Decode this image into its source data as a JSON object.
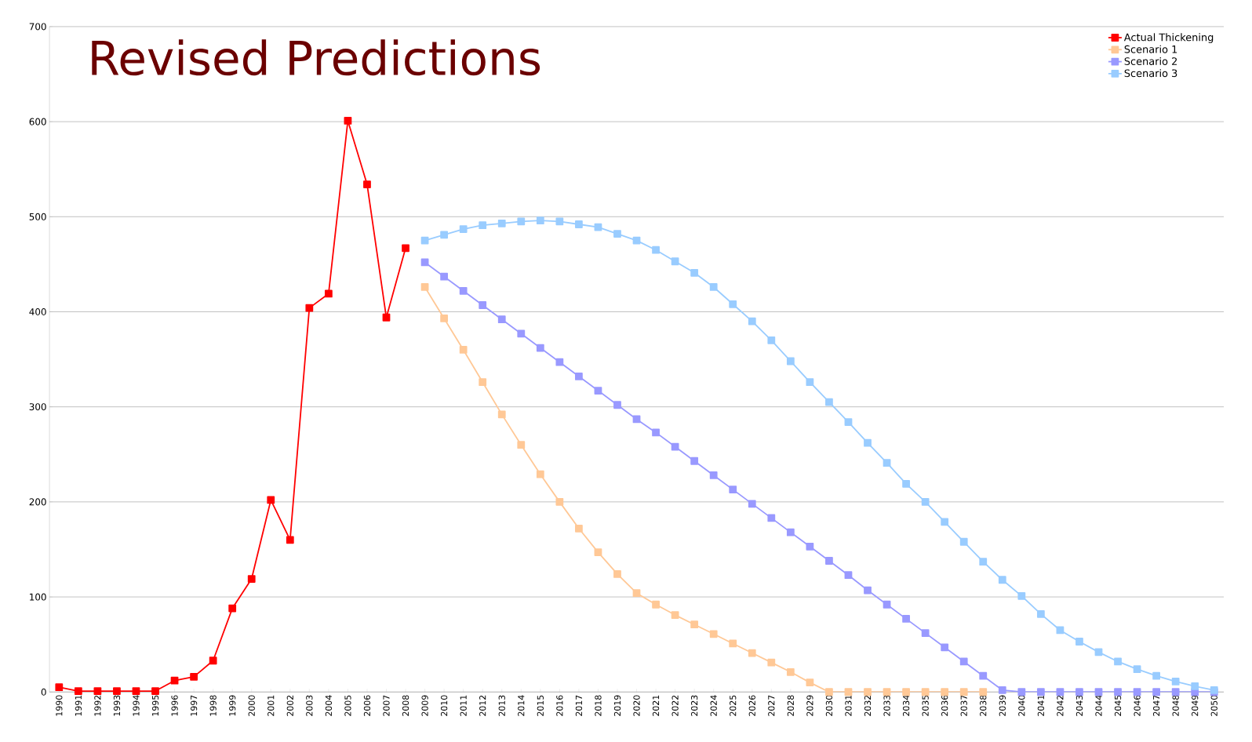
{
  "chart_data": {
    "type": "line",
    "title": "Revised Predictions",
    "categories": [
      "1990",
      "1991",
      "1992",
      "1993",
      "1994",
      "1995",
      "1996",
      "1997",
      "1998",
      "1999",
      "2000",
      "2001",
      "2002",
      "2003",
      "2004",
      "2005",
      "2006",
      "2007",
      "2008",
      "2009",
      "2010",
      "2011",
      "2012",
      "2013",
      "2014",
      "2015",
      "2016",
      "2017",
      "2018",
      "2019",
      "2020",
      "2021",
      "2022",
      "2023",
      "2024",
      "2025",
      "2026",
      "2027",
      "2028",
      "2029",
      "2030",
      "2031",
      "2032",
      "2033",
      "2034",
      "2035",
      "2036",
      "2037",
      "2038",
      "2039",
      "2040",
      "2041",
      "2042",
      "2043",
      "2044",
      "2045",
      "2046",
      "2047",
      "2048",
      "2049",
      "2050"
    ],
    "series": [
      {
        "name": "Actual Thickening",
        "color": "#ff0000",
        "values": [
          5,
          1,
          1,
          1,
          1,
          1,
          12,
          16,
          33,
          88,
          119,
          202,
          160,
          404,
          419,
          601,
          534,
          394,
          467,
          null,
          null,
          null,
          null,
          null,
          null,
          null,
          null,
          null,
          null,
          null,
          null,
          null,
          null,
          null,
          null,
          null,
          null,
          null,
          null,
          null,
          null,
          null,
          null,
          null,
          null,
          null,
          null,
          null,
          null,
          null,
          null,
          null,
          null,
          null,
          null,
          null,
          null,
          null,
          null,
          null,
          null
        ]
      },
      {
        "name": "Scenario 1",
        "color": "#ffc896",
        "values": [
          null,
          null,
          null,
          null,
          null,
          null,
          null,
          null,
          null,
          null,
          null,
          null,
          null,
          null,
          null,
          null,
          null,
          null,
          null,
          426,
          393,
          360,
          326,
          292,
          260,
          229,
          200,
          172,
          147,
          124,
          104,
          92,
          81,
          71,
          61,
          51,
          41,
          31,
          21,
          10,
          0,
          0,
          0,
          0,
          0,
          0,
          0,
          0,
          0,
          null,
          null,
          null,
          null,
          null,
          null,
          null,
          null,
          null,
          null,
          null,
          null
        ]
      },
      {
        "name": "Scenario 2",
        "color": "#9999ff",
        "values": [
          null,
          null,
          null,
          null,
          null,
          null,
          null,
          null,
          null,
          null,
          null,
          null,
          null,
          null,
          null,
          null,
          null,
          null,
          null,
          452,
          437,
          422,
          407,
          392,
          377,
          362,
          347,
          332,
          317,
          302,
          287,
          273,
          258,
          243,
          228,
          213,
          198,
          183,
          168,
          153,
          138,
          123,
          107,
          92,
          77,
          62,
          47,
          32,
          17,
          2,
          0,
          0,
          0,
          0,
          0,
          0,
          0,
          0,
          0,
          0,
          0
        ]
      },
      {
        "name": "Scenario 3",
        "color": "#99ccff",
        "values": [
          null,
          null,
          null,
          null,
          null,
          null,
          null,
          null,
          null,
          null,
          null,
          null,
          null,
          null,
          null,
          null,
          null,
          null,
          null,
          475,
          481,
          487,
          491,
          493,
          495,
          496,
          495,
          492,
          489,
          482,
          475,
          465,
          453,
          441,
          426,
          408,
          390,
          370,
          348,
          326,
          305,
          284,
          262,
          241,
          219,
          200,
          179,
          158,
          137,
          118,
          101,
          82,
          65,
          53,
          42,
          32,
          24,
          17,
          11,
          6,
          2
        ]
      }
    ],
    "ylim": [
      0,
      700
    ],
    "yticks": [
      0,
      100,
      200,
      300,
      400,
      500,
      600,
      700
    ],
    "grid": "y",
    "legend": "top right",
    "marker": "square"
  }
}
